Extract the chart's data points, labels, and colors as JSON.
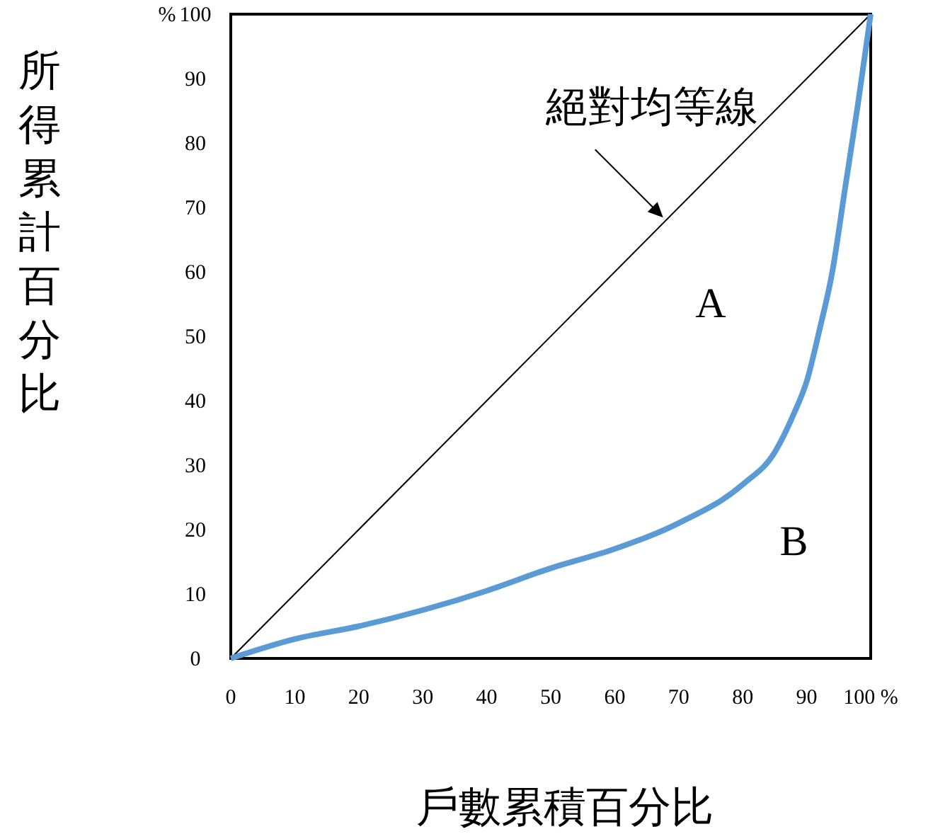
{
  "chart_data": {
    "type": "line",
    "xlabel": "戶數累積百分比",
    "ylabel": "所得累計百分比",
    "xlim": [
      0,
      100
    ],
    "ylim": [
      0,
      100
    ],
    "xticks": [
      0,
      10,
      20,
      30,
      40,
      50,
      60,
      70,
      80,
      90,
      {
        "value": 100,
        "label": "100 %"
      }
    ],
    "yticks": [
      0,
      10,
      20,
      30,
      40,
      50,
      60,
      70,
      80,
      90,
      100
    ],
    "grid": false,
    "series": [
      {
        "color": "#000000",
        "x": [
          0,
          100
        ],
        "values": [
          0,
          100
        ]
      },
      {
        "color": "#5b9bd5",
        "x": [
          0,
          10,
          20,
          30,
          40,
          50,
          60,
          70,
          80,
          85,
          88,
          90,
          92,
          94,
          96,
          98,
          100
        ],
        "values": [
          0,
          3,
          5,
          7.5,
          10.5,
          14,
          17,
          21,
          27,
          32,
          38,
          43,
          51,
          60,
          73,
          86,
          100
        ]
      }
    ],
    "annotations": [
      "%",
      {
        "text": "絕對均等線",
        "x": 68,
        "y": 68
      },
      "A",
      "B"
    ]
  }
}
